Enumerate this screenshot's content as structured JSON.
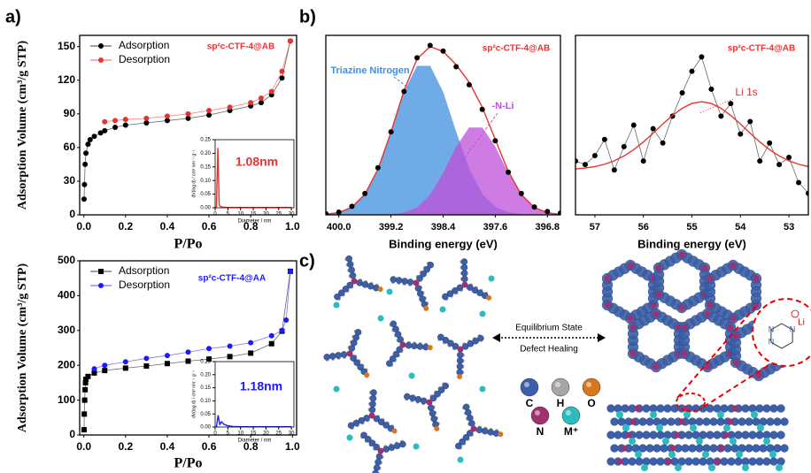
{
  "panels": {
    "a": "a)",
    "b": "b)",
    "c": "c)"
  },
  "chart_data": [
    {
      "type": "line",
      "title": "sp²c-CTF-4@AB",
      "title_color": "#e8322f",
      "xlabel": "P/Po",
      "ylabel": "Adsorption Volume (cm³/g STP)",
      "xlim": [
        -0.02,
        1.02
      ],
      "ylim": [
        0,
        160
      ],
      "xticks": [
        {
          "value": 0,
          "label": "0.0"
        },
        0.2,
        0.4,
        0.6,
        0.8,
        {
          "value": 1,
          "label": "1.0"
        }
      ],
      "yticks": [
        0,
        30,
        60,
        90,
        120,
        150
      ],
      "legend": "upper left",
      "series": [
        {
          "name": "Adsorption",
          "color": "#000000",
          "style": "linepoints",
          "marker": "circle",
          "x": [
            0.001,
            0.003,
            0.006,
            0.01,
            0.02,
            0.03,
            0.05,
            0.08,
            0.1,
            0.15,
            0.2,
            0.3,
            0.4,
            0.5,
            0.6,
            0.7,
            0.8,
            0.85,
            0.9,
            0.95,
            0.99
          ],
          "values": [
            14,
            27,
            45,
            55,
            63,
            67,
            70,
            73,
            75,
            78,
            80,
            82,
            84,
            86,
            89,
            93,
            97,
            100,
            107,
            122,
            155
          ]
        },
        {
          "name": "Desorption",
          "color": "#e8322f",
          "style": "linepoints",
          "marker": "circle",
          "x": [
            0.99,
            0.95,
            0.9,
            0.85,
            0.8,
            0.7,
            0.6,
            0.5,
            0.4,
            0.3,
            0.2,
            0.15,
            0.1
          ],
          "values": [
            155,
            128,
            110,
            104,
            100,
            96,
            93,
            90,
            88,
            86,
            85,
            84,
            83
          ]
        }
      ]
    },
    {
      "type": "line",
      "annotation": "1.08nm",
      "annotation_color": "#e8322f",
      "xlabel": "Diameter / nm",
      "ylabel": "dV(log d) / cm³ nm⁻¹ g⁻¹",
      "xlim": [
        0,
        31
      ],
      "ylim": [
        0,
        0.25
      ],
      "xticks": [
        0,
        5,
        10,
        15,
        20,
        25,
        30
      ],
      "yticks": [
        {
          "value": 0,
          "label": "0.00"
        },
        0.05,
        {
          "value": 0.1,
          "label": "0.10"
        },
        0.15,
        {
          "value": 0.2,
          "label": "0.20"
        },
        0.25
      ],
      "series": [
        {
          "color": "#e8322f",
          "style": "line",
          "x": [
            0.5,
            1.08,
            1.6,
            2,
            3,
            5,
            10,
            15,
            20,
            25,
            30
          ],
          "values": [
            0,
            0.22,
            0.01,
            0.005,
            0.002,
            0.001,
            0.001,
            0.001,
            0.001,
            0.001,
            0.001
          ]
        }
      ]
    },
    {
      "type": "line",
      "title": "sp²c-CTF-4@AA",
      "title_color": "#1a1aff",
      "xlabel": "P/Po",
      "ylabel": "Adsorption Volume (cm³/g STP)",
      "xlim": [
        -0.02,
        1.02
      ],
      "ylim": [
        0,
        500
      ],
      "xticks": [
        {
          "value": 0,
          "label": "0.0"
        },
        0.2,
        0.4,
        0.6,
        0.8,
        {
          "value": 1,
          "label": "1.0"
        }
      ],
      "yticks": [
        0,
        100,
        200,
        300,
        400,
        500
      ],
      "legend": "upper left",
      "series": [
        {
          "name": "Adsorption",
          "color": "#000000",
          "style": "linepoints",
          "marker": "square",
          "x": [
            0.001,
            0.002,
            0.004,
            0.006,
            0.008,
            0.01,
            0.02,
            0.05,
            0.1,
            0.2,
            0.3,
            0.4,
            0.5,
            0.6,
            0.7,
            0.8,
            0.9,
            0.95,
            0.99
          ],
          "values": [
            15,
            60,
            100,
            130,
            150,
            160,
            168,
            178,
            185,
            192,
            198,
            205,
            212,
            218,
            225,
            235,
            262,
            298,
            470
          ]
        },
        {
          "name": "Desorption",
          "color": "#1a1aff",
          "style": "linepoints",
          "marker": "circle",
          "x": [
            0.99,
            0.97,
            0.95,
            0.9,
            0.8,
            0.7,
            0.6,
            0.5,
            0.4,
            0.3,
            0.2,
            0.1,
            0.05
          ],
          "values": [
            470,
            330,
            300,
            285,
            265,
            255,
            248,
            238,
            228,
            220,
            210,
            200,
            190
          ]
        }
      ]
    },
    {
      "type": "line",
      "annotation": "1.18nm",
      "annotation_color": "#1a1aff",
      "xlabel": "Diameter / nm",
      "ylabel": "dV(log d) / cm³ nm⁻¹ g⁻¹",
      "xlim": [
        0,
        31
      ],
      "ylim": [
        0,
        0.25
      ],
      "xticks": [
        0,
        5,
        10,
        15,
        20,
        25,
        30
      ],
      "yticks": [
        {
          "value": 0,
          "label": "0.00"
        },
        0.05,
        {
          "value": 0.1,
          "label": "0.10"
        },
        0.15,
        {
          "value": 0.2,
          "label": "0.20"
        },
        0.25
      ],
      "series": [
        {
          "color": "#1a1aff",
          "style": "line",
          "x": [
            0.5,
            1.18,
            1.8,
            2.5,
            3.5,
            5,
            7,
            10,
            15,
            20,
            25,
            30
          ],
          "values": [
            0,
            0.045,
            0.01,
            0.02,
            0.01,
            0.005,
            0.002,
            0.001,
            0.001,
            0.001,
            0.001,
            0.001
          ]
        }
      ]
    },
    {
      "type": "line",
      "title": "sp²c-CTF-4@AB",
      "title_color": "#e8322f",
      "xlabel": "Binding energy (eV)",
      "xlim": [
        400.2,
        396.6
      ],
      "ylim": [
        0,
        80
      ],
      "xticks": [
        {
          "value": 400,
          "label": "400.0"
        },
        399.2,
        398.4,
        397.6,
        396.8
      ],
      "series": [
        {
          "name": "Triazine Nitrogen",
          "color": "#3f8fe0",
          "style": "area",
          "x": [
            400.2,
            400.0,
            399.8,
            399.6,
            399.4,
            399.2,
            399.0,
            398.8,
            398.6,
            398.4,
            398.2,
            398.0,
            397.8,
            397.6,
            397.4,
            397.2,
            397.0,
            396.8,
            396.6
          ],
          "values": [
            0.3,
            1.0,
            3.4,
            9.2,
            20.3,
            36.7,
            54.5,
            66.3,
            66.3,
            54.5,
            36.7,
            20.3,
            9.2,
            3.4,
            1.0,
            0.3,
            0.1,
            0,
            0
          ]
        },
        {
          "name": "-N-Li",
          "color": "#c04fdc",
          "style": "area",
          "x": [
            400.2,
            400.0,
            399.8,
            399.6,
            399.4,
            399.2,
            399.0,
            398.8,
            398.6,
            398.4,
            398.2,
            398.0,
            397.8,
            397.6,
            397.4,
            397.2,
            397.0,
            396.8,
            396.6
          ],
          "values": [
            0,
            0,
            0,
            0.005,
            0.04,
            0.2,
            0.9,
            3.2,
            8.7,
            18.3,
            30.2,
            38.8,
            38.8,
            30.2,
            18.3,
            8.7,
            3.2,
            0.9,
            0.2
          ]
        },
        {
          "color": "#e8322f",
          "style": "line",
          "x": [
            400.2,
            400.0,
            399.8,
            399.6,
            399.4,
            399.2,
            399.0,
            398.8,
            398.6,
            398.4,
            398.2,
            398.0,
            397.8,
            397.6,
            397.4,
            397.2,
            397.0,
            396.8,
            396.6
          ],
          "values": [
            0.3,
            1.0,
            3.4,
            9.2,
            20.3,
            36.9,
            55.4,
            69.5,
            75.0,
            72.8,
            66.9,
            59.1,
            48.0,
            33.6,
            19.3,
            9.0,
            3.3,
            0.9,
            0.2
          ]
        },
        {
          "color": "#000000",
          "style": "points",
          "marker": "circle",
          "x": [
            400.2,
            400.0,
            399.8,
            399.6,
            399.4,
            399.2,
            399.0,
            398.8,
            398.6,
            398.4,
            398.2,
            398.0,
            397.8,
            397.6,
            397.4,
            397.2,
            397.0,
            396.8,
            396.6
          ],
          "values": [
            0.5,
            1.2,
            3.8,
            9.5,
            21,
            37,
            55,
            70,
            75.5,
            73,
            66,
            58,
            47,
            33,
            19,
            9.5,
            3.5,
            1.5,
            0.8
          ]
        }
      ]
    },
    {
      "type": "line",
      "title": "sp²c-CTF-4@AB",
      "title_color": "#e8322f",
      "annotation": "Li 1s",
      "annotation_color": "#e8322f",
      "xlabel": "Binding energy (eV)",
      "xlim": [
        57.4,
        52.6
      ],
      "ylim": [
        0,
        100
      ],
      "xticks": [
        57,
        56,
        55,
        54,
        53
      ],
      "series": [
        {
          "color": "#000000",
          "style": "linepoints",
          "marker": "circle",
          "x": [
            57.4,
            57.2,
            57.0,
            56.8,
            56.6,
            56.4,
            56.2,
            56.0,
            55.8,
            55.6,
            55.4,
            55.2,
            55.0,
            54.8,
            54.6,
            54.4,
            54.2,
            54.0,
            53.8,
            53.6,
            53.4,
            53.2,
            53.0,
            52.8,
            52.6
          ],
          "values": [
            30,
            28,
            33,
            42,
            25,
            38,
            50,
            30,
            48,
            40,
            55,
            68,
            80,
            88,
            70,
            55,
            62,
            45,
            52,
            30,
            40,
            28,
            32,
            18,
            12
          ]
        },
        {
          "color": "#e8322f",
          "style": "line",
          "x": [
            57.4,
            57.2,
            57.0,
            56.8,
            56.6,
            56.4,
            56.2,
            56.0,
            55.8,
            55.6,
            55.4,
            55.2,
            55.0,
            54.8,
            54.6,
            54.4,
            54.2,
            54.0,
            53.8,
            53.6,
            53.4,
            53.2,
            53.0,
            52.8,
            52.6
          ],
          "values": [
            25.6,
            26.1,
            26.9,
            28.2,
            30.1,
            32.8,
            36.3,
            40.6,
            45.5,
            50.6,
            55.4,
            59.4,
            62.1,
            63,
            62.1,
            59.4,
            55.4,
            50.6,
            45.5,
            40.6,
            36.3,
            32.8,
            30.1,
            28.2,
            26.9
          ]
        }
      ]
    }
  ],
  "diagram": {
    "arrow_top": "Equilibrium State",
    "arrow_bottom": "Defect Healing",
    "atoms": [
      {
        "label": "C",
        "color": "#3b5fa8"
      },
      {
        "label": "H",
        "color": "#a6a6a6"
      },
      {
        "label": "O",
        "color": "#d9761c"
      },
      {
        "label": "N",
        "color": "#a0306e"
      },
      {
        "label": "M⁺",
        "color": "#2bbcc0"
      }
    ],
    "zoom_labels": [
      "N",
      "N",
      "N",
      "Li"
    ]
  }
}
